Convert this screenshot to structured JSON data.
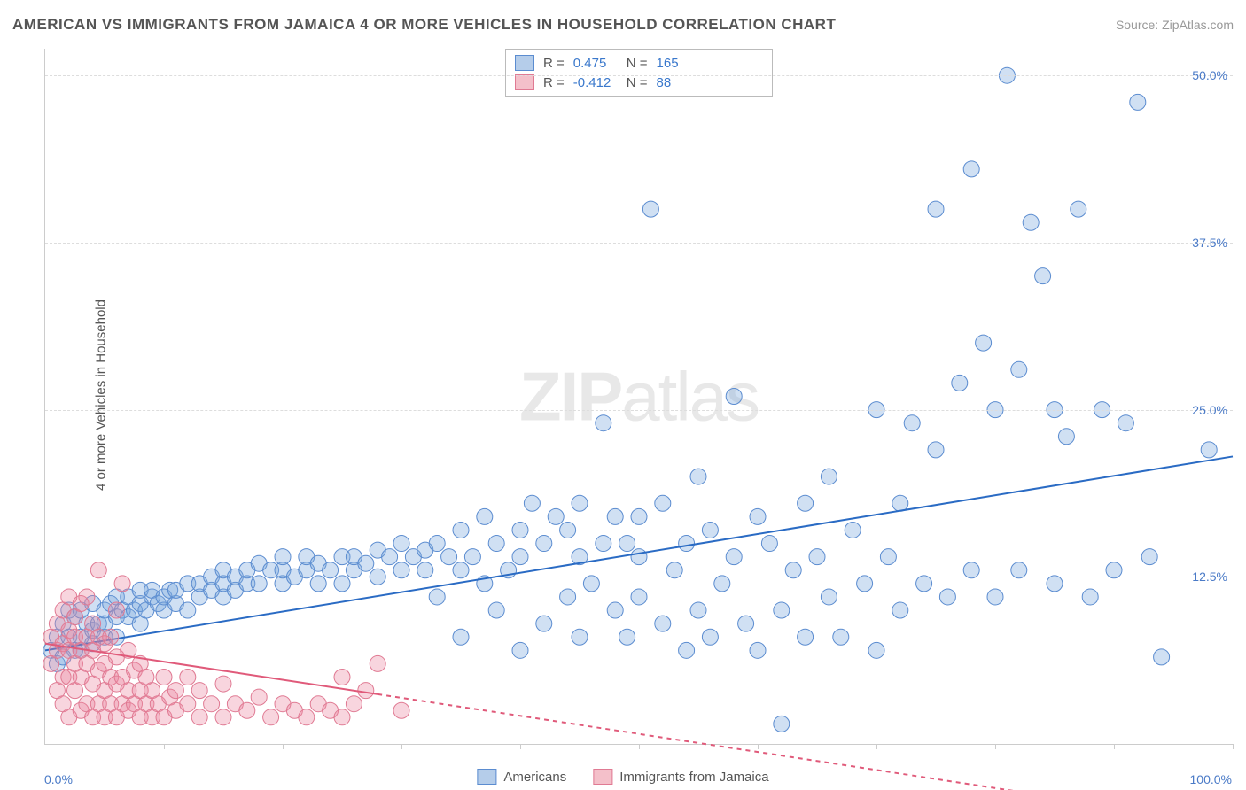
{
  "header": {
    "title": "AMERICAN VS IMMIGRANTS FROM JAMAICA 4 OR MORE VEHICLES IN HOUSEHOLD CORRELATION CHART",
    "source": "Source: ZipAtlas.com"
  },
  "axes": {
    "ylabel": "4 or more Vehicles in Household",
    "x_min_label": "0.0%",
    "x_max_label": "100.0%",
    "x_label_color": "#4a7ac7",
    "xlim": [
      0,
      100
    ],
    "ylim": [
      0,
      52
    ],
    "y_ticks": [
      {
        "value": 12.5,
        "label": "12.5%"
      },
      {
        "value": 25.0,
        "label": "25.0%"
      },
      {
        "value": 37.5,
        "label": "37.5%"
      },
      {
        "value": 50.0,
        "label": "50.0%"
      }
    ],
    "y_tick_color": "#4a7ac7",
    "x_tick_positions": [
      10,
      20,
      30,
      40,
      50,
      60,
      70,
      80,
      90,
      100
    ],
    "grid_color": "#dddddd",
    "axis_color": "#cccccc"
  },
  "watermark": {
    "bold": "ZIP",
    "light": "atlas"
  },
  "series": [
    {
      "name": "Americans",
      "swatch_fill": "#b5cdea",
      "swatch_border": "#5b8cd0",
      "marker_fill": "rgba(120,165,220,0.35)",
      "marker_stroke": "#5b8cd0",
      "marker_radius": 9,
      "line_color": "#2a6bc4",
      "line_width": 2,
      "regression": {
        "x1": 0,
        "y1": 7.0,
        "x2": 100,
        "y2": 21.5,
        "solid_until_x": 100
      },
      "R_label": "R =",
      "R_value": "0.475",
      "N_label": "N =",
      "N_value": "165",
      "stat_color": "#3a78cc",
      "points": [
        [
          0.5,
          7
        ],
        [
          1,
          6
        ],
        [
          1,
          8
        ],
        [
          1.5,
          9
        ],
        [
          1.5,
          6.5
        ],
        [
          2,
          8
        ],
        [
          2,
          10
        ],
        [
          2.5,
          7
        ],
        [
          2.5,
          9.5
        ],
        [
          3,
          8
        ],
        [
          3,
          7
        ],
        [
          3,
          10
        ],
        [
          3.5,
          9
        ],
        [
          4,
          7.5
        ],
        [
          4,
          8.5
        ],
        [
          4,
          10.5
        ],
        [
          4.5,
          9
        ],
        [
          5,
          8
        ],
        [
          5,
          9
        ],
        [
          5,
          10
        ],
        [
          5.5,
          10.5
        ],
        [
          6,
          8
        ],
        [
          6,
          9.5
        ],
        [
          6,
          11
        ],
        [
          6.5,
          10
        ],
        [
          7,
          9.5
        ],
        [
          7,
          11
        ],
        [
          7.5,
          10
        ],
        [
          8,
          9
        ],
        [
          8,
          10.5
        ],
        [
          8,
          11.5
        ],
        [
          8.5,
          10
        ],
        [
          9,
          11
        ],
        [
          9,
          11.5
        ],
        [
          9.5,
          10.5
        ],
        [
          10,
          10
        ],
        [
          10,
          11
        ],
        [
          10.5,
          11.5
        ],
        [
          11,
          10.5
        ],
        [
          11,
          11.5
        ],
        [
          12,
          10
        ],
        [
          12,
          12
        ],
        [
          13,
          11
        ],
        [
          13,
          12
        ],
        [
          14,
          11.5
        ],
        [
          14,
          12.5
        ],
        [
          15,
          11
        ],
        [
          15,
          12
        ],
        [
          15,
          13
        ],
        [
          16,
          11.5
        ],
        [
          16,
          12.5
        ],
        [
          17,
          12
        ],
        [
          17,
          13
        ],
        [
          18,
          12
        ],
        [
          18,
          13.5
        ],
        [
          19,
          13
        ],
        [
          20,
          12
        ],
        [
          20,
          13
        ],
        [
          20,
          14
        ],
        [
          21,
          12.5
        ],
        [
          22,
          13
        ],
        [
          22,
          14
        ],
        [
          23,
          12
        ],
        [
          23,
          13.5
        ],
        [
          24,
          13
        ],
        [
          25,
          12
        ],
        [
          25,
          14
        ],
        [
          26,
          13
        ],
        [
          26,
          14
        ],
        [
          27,
          13.5
        ],
        [
          28,
          12.5
        ],
        [
          28,
          14.5
        ],
        [
          29,
          14
        ],
        [
          30,
          13
        ],
        [
          30,
          15
        ],
        [
          31,
          14
        ],
        [
          32,
          13
        ],
        [
          32,
          14.5
        ],
        [
          33,
          11
        ],
        [
          33,
          15
        ],
        [
          34,
          14
        ],
        [
          35,
          8
        ],
        [
          35,
          13
        ],
        [
          35,
          16
        ],
        [
          36,
          14
        ],
        [
          37,
          12
        ],
        [
          37,
          17
        ],
        [
          38,
          10
        ],
        [
          38,
          15
        ],
        [
          39,
          13
        ],
        [
          40,
          7
        ],
        [
          40,
          14
        ],
        [
          40,
          16
        ],
        [
          41,
          18
        ],
        [
          42,
          9
        ],
        [
          42,
          15
        ],
        [
          43,
          17
        ],
        [
          44,
          11
        ],
        [
          44,
          16
        ],
        [
          45,
          8
        ],
        [
          45,
          14
        ],
        [
          45,
          18
        ],
        [
          46,
          12
        ],
        [
          47,
          15
        ],
        [
          47,
          24
        ],
        [
          48,
          10
        ],
        [
          48,
          17
        ],
        [
          49,
          8
        ],
        [
          49,
          15
        ],
        [
          50,
          11
        ],
        [
          50,
          14
        ],
        [
          50,
          17
        ],
        [
          51,
          40
        ],
        [
          52,
          9
        ],
        [
          52,
          18
        ],
        [
          53,
          13
        ],
        [
          54,
          7
        ],
        [
          54,
          15
        ],
        [
          55,
          10
        ],
        [
          55,
          20
        ],
        [
          56,
          8
        ],
        [
          56,
          16
        ],
        [
          57,
          12
        ],
        [
          58,
          14
        ],
        [
          58,
          26
        ],
        [
          59,
          9
        ],
        [
          60,
          17
        ],
        [
          60,
          7
        ],
        [
          61,
          15
        ],
        [
          62,
          10
        ],
        [
          62,
          1.5
        ],
        [
          63,
          13
        ],
        [
          64,
          8
        ],
        [
          64,
          18
        ],
        [
          65,
          14
        ],
        [
          66,
          11
        ],
        [
          66,
          20
        ],
        [
          67,
          8
        ],
        [
          68,
          16
        ],
        [
          69,
          12
        ],
        [
          70,
          7
        ],
        [
          70,
          25
        ],
        [
          71,
          14
        ],
        [
          72,
          10
        ],
        [
          72,
          18
        ],
        [
          73,
          24
        ],
        [
          74,
          12
        ],
        [
          75,
          40
        ],
        [
          75,
          22
        ],
        [
          76,
          11
        ],
        [
          77,
          27
        ],
        [
          78,
          43
        ],
        [
          78,
          13
        ],
        [
          79,
          30
        ],
        [
          80,
          11
        ],
        [
          80,
          25
        ],
        [
          81,
          50
        ],
        [
          82,
          13
        ],
        [
          82,
          28
        ],
        [
          83,
          39
        ],
        [
          84,
          35
        ],
        [
          85,
          25
        ],
        [
          85,
          12
        ],
        [
          86,
          23
        ],
        [
          87,
          40
        ],
        [
          88,
          11
        ],
        [
          89,
          25
        ],
        [
          90,
          13
        ],
        [
          91,
          24
        ],
        [
          92,
          48
        ],
        [
          93,
          14
        ],
        [
          94,
          6.5
        ],
        [
          98,
          22
        ]
      ]
    },
    {
      "name": "Immigrants from Jamaica",
      "swatch_fill": "#f4c0ca",
      "swatch_border": "#e07a93",
      "marker_fill": "rgba(235,135,160,0.35)",
      "marker_stroke": "#e07a93",
      "marker_radius": 9,
      "line_color": "#e05a7a",
      "line_width": 2,
      "regression": {
        "x1": 0,
        "y1": 7.5,
        "x2": 100,
        "y2": -6,
        "solid_until_x": 28
      },
      "R_label": "R =",
      "R_value": "-0.412",
      "N_label": "N =",
      "N_value": "88",
      "stat_color": "#3a78cc",
      "points": [
        [
          0.5,
          6
        ],
        [
          0.5,
          8
        ],
        [
          1,
          4
        ],
        [
          1,
          7
        ],
        [
          1,
          9
        ],
        [
          1.5,
          3
        ],
        [
          1.5,
          5
        ],
        [
          1.5,
          7.5
        ],
        [
          1.5,
          10
        ],
        [
          2,
          2
        ],
        [
          2,
          5
        ],
        [
          2,
          7
        ],
        [
          2,
          8.5
        ],
        [
          2,
          11
        ],
        [
          2.5,
          4
        ],
        [
          2.5,
          6
        ],
        [
          2.5,
          8
        ],
        [
          2.5,
          9.5
        ],
        [
          3,
          2.5
        ],
        [
          3,
          5
        ],
        [
          3,
          7
        ],
        [
          3,
          10.5
        ],
        [
          3.5,
          3
        ],
        [
          3.5,
          6
        ],
        [
          3.5,
          8
        ],
        [
          3.5,
          11
        ],
        [
          4,
          2
        ],
        [
          4,
          4.5
        ],
        [
          4,
          7
        ],
        [
          4,
          9
        ],
        [
          4.5,
          3
        ],
        [
          4.5,
          5.5
        ],
        [
          4.5,
          8
        ],
        [
          4.5,
          13
        ],
        [
          5,
          2
        ],
        [
          5,
          4
        ],
        [
          5,
          6
        ],
        [
          5,
          7.5
        ],
        [
          5.5,
          3
        ],
        [
          5.5,
          5
        ],
        [
          5.5,
          8
        ],
        [
          6,
          2
        ],
        [
          6,
          4.5
        ],
        [
          6,
          6.5
        ],
        [
          6,
          10
        ],
        [
          6.5,
          3
        ],
        [
          6.5,
          5
        ],
        [
          6.5,
          12
        ],
        [
          7,
          2.5
        ],
        [
          7,
          4
        ],
        [
          7,
          7
        ],
        [
          7.5,
          3
        ],
        [
          7.5,
          5.5
        ],
        [
          8,
          2
        ],
        [
          8,
          4
        ],
        [
          8,
          6
        ],
        [
          8.5,
          3
        ],
        [
          8.5,
          5
        ],
        [
          9,
          2
        ],
        [
          9,
          4
        ],
        [
          9.5,
          3
        ],
        [
          10,
          2
        ],
        [
          10,
          5
        ],
        [
          10.5,
          3.5
        ],
        [
          11,
          2.5
        ],
        [
          11,
          4
        ],
        [
          12,
          3
        ],
        [
          12,
          5
        ],
        [
          13,
          2
        ],
        [
          13,
          4
        ],
        [
          14,
          3
        ],
        [
          15,
          2
        ],
        [
          15,
          4.5
        ],
        [
          16,
          3
        ],
        [
          17,
          2.5
        ],
        [
          18,
          3.5
        ],
        [
          19,
          2
        ],
        [
          20,
          3
        ],
        [
          21,
          2.5
        ],
        [
          22,
          2
        ],
        [
          23,
          3
        ],
        [
          24,
          2.5
        ],
        [
          25,
          2
        ],
        [
          25,
          5
        ],
        [
          26,
          3
        ],
        [
          27,
          4
        ],
        [
          28,
          6
        ],
        [
          30,
          2.5
        ]
      ]
    }
  ],
  "legend_bottom": [
    {
      "label": "Americans",
      "series_index": 0
    },
    {
      "label": "Immigrants from Jamaica",
      "series_index": 1
    }
  ]
}
